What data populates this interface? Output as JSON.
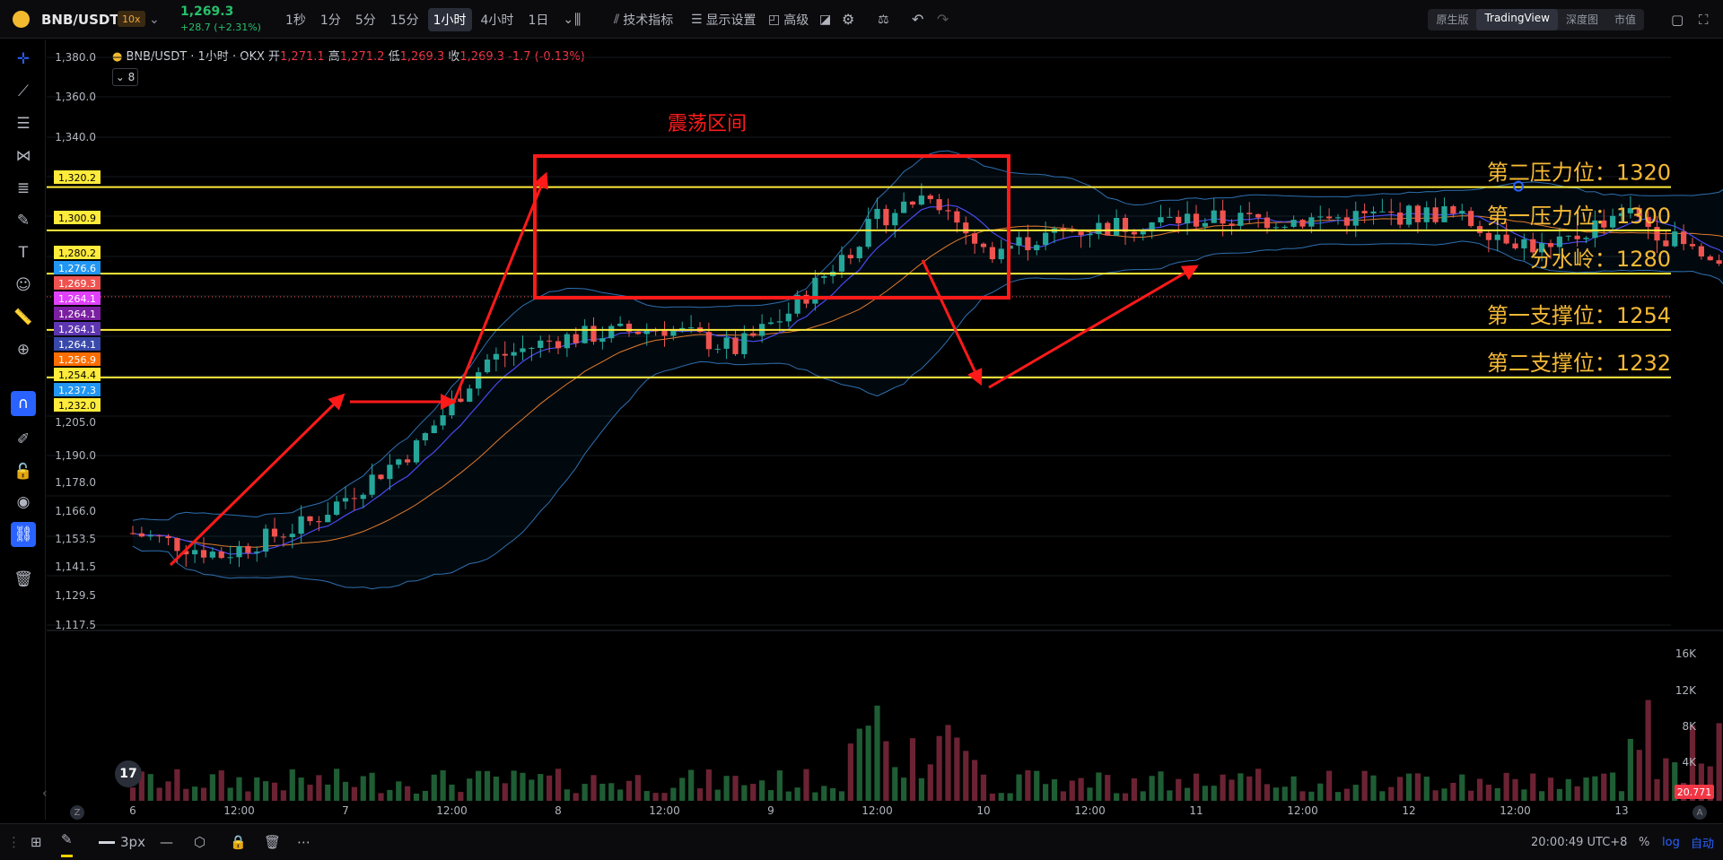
{
  "topbar": {
    "pair": "BNB/USDT",
    "leverage": "10x",
    "price": "1,269.3",
    "change": "+28.7 (+2.31%)",
    "timeframes": [
      "1秒",
      "1分",
      "5分",
      "15分",
      "1小时",
      "4小时",
      "1日"
    ],
    "active_timeframe": "1小时",
    "indicators_label": "技术指标",
    "display_label": "显示设置",
    "advanced_label": "高级",
    "views": [
      "原生版",
      "TradingView",
      "深度图",
      "市值"
    ],
    "active_view": "TradingView"
  },
  "legend": {
    "symbol": "BNB/USDT · 1小时 · OKX",
    "open_label": "开",
    "open": "1,271.1",
    "high_label": "高",
    "high": "1,271.2",
    "low_label": "低",
    "low": "1,269.3",
    "close_label": "收",
    "close": "1,269.3",
    "change": "-1.7 (-0.13%)",
    "indicator_count": "8"
  },
  "bottombar": {
    "stroke_width": "3px",
    "time": "20:00:49 UTC+8",
    "percent": "%",
    "log": "log",
    "auto": "自动"
  },
  "colors": {
    "up": "#26a69a",
    "down": "#ef5350",
    "level": "#ffeb3b",
    "annotation": "#ff1a1a",
    "label": "#f5b935"
  },
  "chart_data": {
    "type": "candlestick",
    "y_ticks": [
      "1,380.0",
      "1,360.0",
      "1,340.0",
      "1,205.0",
      "1,190.0",
      "1,178.0",
      "1,166.0",
      "1,153.5",
      "1,141.5",
      "1,129.5",
      "1,117.5"
    ],
    "x_ticks": [
      "6",
      "12:00",
      "7",
      "12:00",
      "8",
      "12:00",
      "9",
      "12:00",
      "10",
      "12:00",
      "11",
      "12:00",
      "12",
      "12:00",
      "13"
    ],
    "volume_ticks": [
      "16K",
      "12K",
      "8K",
      "4K"
    ],
    "volume_current": "20.771",
    "price_labels": [
      {
        "value": "1,320.2",
        "color": "#ffeb3b"
      },
      {
        "value": "1,300.9",
        "color": "#ffeb3b"
      },
      {
        "value": "1,280.2",
        "color": "#ffeb3b"
      },
      {
        "value": "1,276.6",
        "color": "#2196f3"
      },
      {
        "value": "1,269.3",
        "color": "#ef5350"
      },
      {
        "value": "1,264.1",
        "color": "#e040fb"
      },
      {
        "value": "1,264.1",
        "color": "#7b1fa2"
      },
      {
        "value": "1,264.1",
        "color": "#5e35b1"
      },
      {
        "value": "1,264.1",
        "color": "#3949ab"
      },
      {
        "value": "1,256.9",
        "color": "#ff6d00"
      },
      {
        "value": "1,254.4",
        "color": "#ffeb3b"
      },
      {
        "value": "1,237.3",
        "color": "#2196f3"
      },
      {
        "value": "1,232.0",
        "color": "#ffeb3b"
      }
    ],
    "levels": [
      {
        "label": "第二压力位：1320",
        "value": 1320
      },
      {
        "label": "第一压力位：1300",
        "value": 1300
      },
      {
        "label": "分水岭：1280",
        "value": 1280
      },
      {
        "label": "第一支撑位：1254",
        "value": 1254
      },
      {
        "label": "第二支撑位：1232",
        "value": 1232
      }
    ],
    "box_label": "震荡区间"
  }
}
